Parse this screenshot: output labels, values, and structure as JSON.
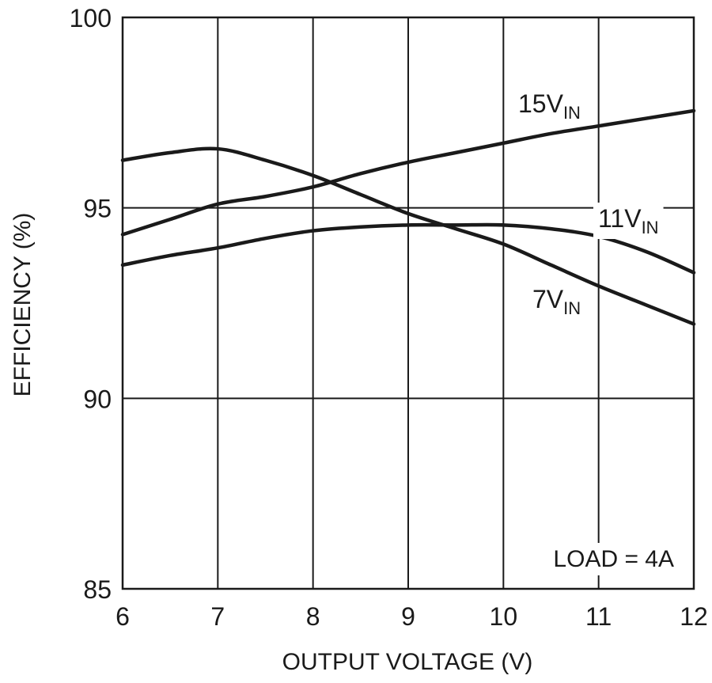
{
  "chart_data": {
    "type": "line",
    "title": "",
    "xlabel": "OUTPUT VOLTAGE (V)",
    "ylabel": "EFFICIENCY (%)",
    "xlim": [
      6,
      12
    ],
    "ylim": [
      85,
      100
    ],
    "xticks": [
      "6",
      "7",
      "8",
      "9",
      "10",
      "11",
      "12"
    ],
    "yticks": [
      "85",
      "90",
      "95",
      "100"
    ],
    "grid": true,
    "annotation": "LOAD = 4A",
    "series": [
      {
        "name": "15V",
        "name_sub": "IN",
        "x": [
          6,
          6.5,
          7,
          7.5,
          8,
          8.5,
          9,
          9.5,
          10,
          10.5,
          11,
          11.5,
          12
        ],
        "values": [
          94.3,
          94.7,
          95.1,
          95.3,
          95.55,
          95.9,
          96.2,
          96.45,
          96.7,
          96.95,
          97.15,
          97.35,
          97.55
        ]
      },
      {
        "name": "11V",
        "name_sub": "IN",
        "x": [
          6,
          6.5,
          7,
          7.5,
          8,
          8.5,
          9,
          9.5,
          10,
          10.5,
          11,
          11.5,
          12
        ],
        "values": [
          93.5,
          93.75,
          93.95,
          94.2,
          94.4,
          94.5,
          94.55,
          94.55,
          94.55,
          94.45,
          94.25,
          93.85,
          93.3
        ]
      },
      {
        "name": "7V",
        "name_sub": "IN",
        "x": [
          6,
          6.5,
          7,
          7.5,
          8,
          8.5,
          9,
          9.5,
          10,
          10.5,
          11,
          11.5,
          12
        ],
        "values": [
          96.25,
          96.45,
          96.55,
          96.25,
          95.85,
          95.35,
          94.85,
          94.45,
          94.05,
          93.5,
          92.95,
          92.45,
          91.95
        ]
      }
    ]
  }
}
